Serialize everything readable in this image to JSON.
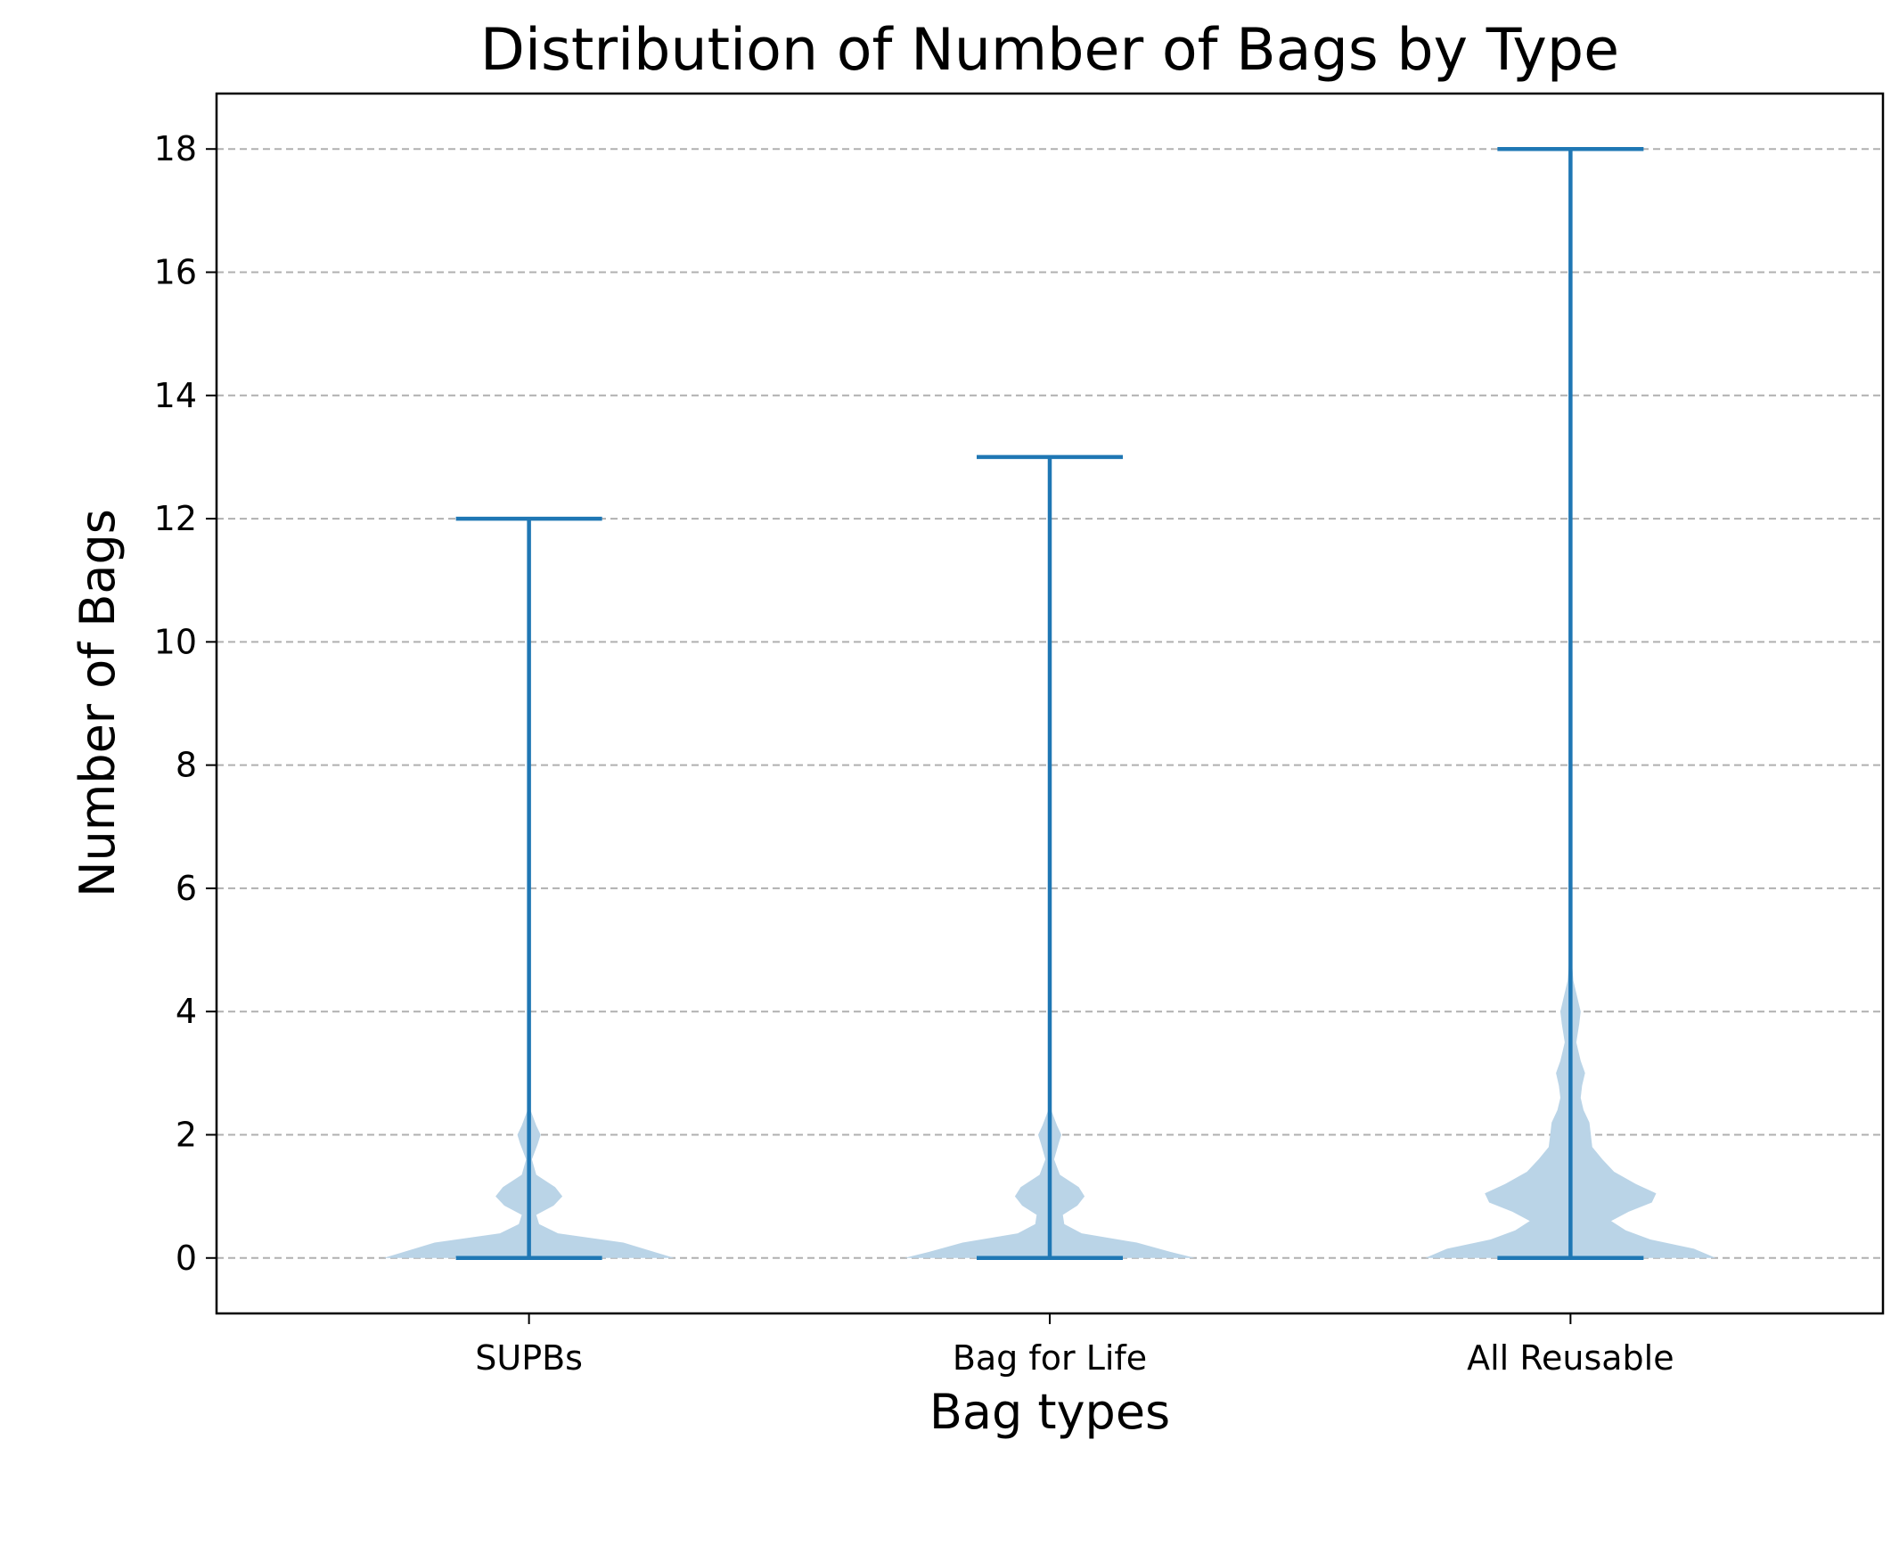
{
  "chart_data": {
    "type": "violin",
    "title": "Distribution of Number of Bags by Type",
    "xlabel": "Bag types",
    "ylabel": "Number of Bags",
    "categories": [
      "SUPBs",
      "Bag for Life",
      "All Reusable"
    ],
    "ylim": [
      -0.9,
      18.9
    ],
    "yticks": [
      0,
      2,
      4,
      6,
      8,
      10,
      12,
      14,
      16,
      18
    ],
    "grid": {
      "axis": "y",
      "style": "dashed"
    },
    "series": [
      {
        "category": "SUPBs",
        "min": 0,
        "max": 12,
        "density_profile": [
          [
            0,
            1.0
          ],
          [
            0.1,
            0.86
          ],
          [
            0.25,
            0.65
          ],
          [
            0.4,
            0.2
          ],
          [
            0.55,
            0.07
          ],
          [
            0.7,
            0.05
          ],
          [
            0.85,
            0.17
          ],
          [
            1.0,
            0.23
          ],
          [
            1.15,
            0.18
          ],
          [
            1.35,
            0.05
          ],
          [
            1.6,
            0.02
          ],
          [
            1.85,
            0.06
          ],
          [
            2.0,
            0.08
          ],
          [
            2.15,
            0.05
          ],
          [
            2.4,
            0.01
          ],
          [
            3.0,
            0.0
          ]
        ]
      },
      {
        "category": "Bag for Life",
        "min": 0,
        "max": 13,
        "density_profile": [
          [
            0,
            1.0
          ],
          [
            0.1,
            0.83
          ],
          [
            0.25,
            0.6
          ],
          [
            0.4,
            0.22
          ],
          [
            0.55,
            0.1
          ],
          [
            0.7,
            0.09
          ],
          [
            0.85,
            0.19
          ],
          [
            1.0,
            0.24
          ],
          [
            1.15,
            0.2
          ],
          [
            1.35,
            0.07
          ],
          [
            1.6,
            0.03
          ],
          [
            1.85,
            0.06
          ],
          [
            2.0,
            0.08
          ],
          [
            2.15,
            0.05
          ],
          [
            2.4,
            0.01
          ],
          [
            3.1,
            0.0
          ]
        ]
      },
      {
        "category": "All Reusable",
        "min": 0,
        "max": 18,
        "density_profile": [
          [
            0,
            1.0
          ],
          [
            0.15,
            0.85
          ],
          [
            0.3,
            0.55
          ],
          [
            0.45,
            0.38
          ],
          [
            0.6,
            0.28
          ],
          [
            0.75,
            0.4
          ],
          [
            0.9,
            0.56
          ],
          [
            1.05,
            0.59
          ],
          [
            1.2,
            0.45
          ],
          [
            1.4,
            0.3
          ],
          [
            1.6,
            0.22
          ],
          [
            1.8,
            0.15
          ],
          [
            2.0,
            0.14
          ],
          [
            2.2,
            0.13
          ],
          [
            2.4,
            0.09
          ],
          [
            2.6,
            0.07
          ],
          [
            2.8,
            0.08
          ],
          [
            3.0,
            0.1
          ],
          [
            3.2,
            0.07
          ],
          [
            3.5,
            0.04
          ],
          [
            3.8,
            0.06
          ],
          [
            4.0,
            0.07
          ],
          [
            4.2,
            0.05
          ],
          [
            4.5,
            0.02
          ],
          [
            4.8,
            0.01
          ],
          [
            5.2,
            0.0
          ]
        ]
      }
    ]
  },
  "colors": {
    "line": "#1f77b4",
    "violin_fill": "#bad4e7",
    "grid": "#b0b0b0",
    "axes": "#000000"
  }
}
